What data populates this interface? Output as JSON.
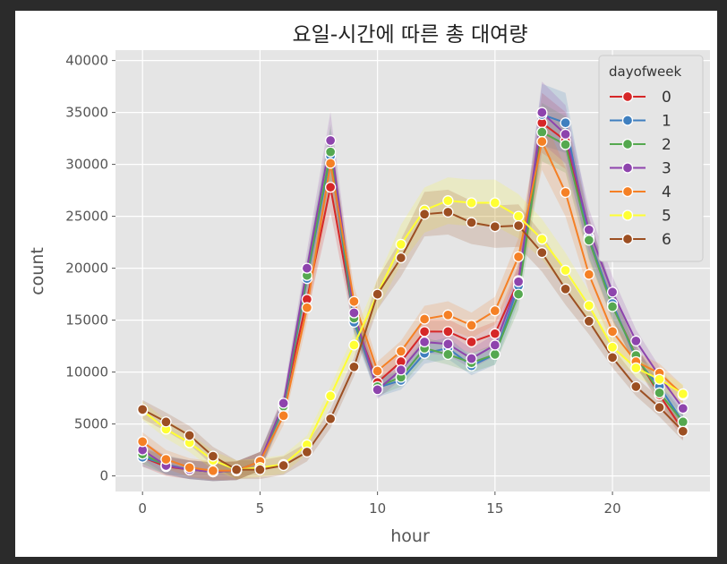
{
  "chart_data": {
    "type": "line",
    "title": "요일-시간에 따른 총 대여량",
    "xlabel": "hour",
    "ylabel": "count",
    "xlim": [
      -1.15,
      24.15
    ],
    "ylim": [
      -1500,
      41000
    ],
    "xticks": [
      0,
      5,
      10,
      15,
      20
    ],
    "yticks": [
      0,
      5000,
      10000,
      15000,
      20000,
      25000,
      30000,
      35000,
      40000
    ],
    "x": [
      0,
      1,
      2,
      3,
      4,
      5,
      6,
      7,
      8,
      9,
      10,
      11,
      12,
      13,
      14,
      15,
      16,
      17,
      18,
      19,
      20,
      21,
      22,
      23
    ],
    "legend_title": "dayofweek",
    "legend_position": "top-right",
    "grid": true,
    "background": "#e5e5e5",
    "marker": "circle",
    "series": [
      {
        "name": "0",
        "color": "#d62728",
        "values": [
          1800,
          900,
          600,
          400,
          500,
          1400,
          6800,
          17000,
          27800,
          15200,
          9000,
          11000,
          13900,
          13900,
          12900,
          13700,
          18800,
          34000,
          32300,
          23000,
          16400,
          11600,
          7800,
          4400
        ]
      },
      {
        "name": "1",
        "color": "#3f7fbf",
        "values": [
          1800,
          1100,
          600,
          400,
          500,
          1400,
          6500,
          19000,
          30800,
          14800,
          8500,
          9200,
          11800,
          12300,
          10600,
          11700,
          18300,
          34800,
          34000,
          22900,
          16600,
          11300,
          8600,
          5200
        ]
      },
      {
        "name": "2",
        "color": "#55a84f",
        "values": [
          2100,
          1000,
          600,
          400,
          500,
          1400,
          6700,
          19300,
          31200,
          15200,
          8600,
          9500,
          12300,
          11700,
          10900,
          11700,
          17500,
          33100,
          31900,
          22700,
          16300,
          11600,
          8000,
          5200
        ]
      },
      {
        "name": "3",
        "color": "#8e44ad",
        "values": [
          2500,
          1000,
          600,
          400,
          500,
          1400,
          7000,
          20000,
          32300,
          15700,
          8300,
          10200,
          12900,
          12700,
          11300,
          12600,
          18700,
          35000,
          32900,
          23700,
          17700,
          13000,
          9600,
          6500
        ]
      },
      {
        "name": "4",
        "color": "#f58025",
        "values": [
          3300,
          1600,
          800,
          500,
          500,
          1400,
          5800,
          16200,
          30100,
          16800,
          10100,
          12000,
          15100,
          15500,
          14500,
          15900,
          21100,
          32200,
          27300,
          19400,
          13900,
          11000,
          9900,
          7800
        ]
      },
      {
        "name": "5",
        "color": "#ffff33",
        "values": [
          6300,
          4500,
          3200,
          1500,
          600,
          800,
          1100,
          3000,
          7700,
          12600,
          17500,
          22300,
          25600,
          26500,
          26300,
          26300,
          25000,
          22800,
          19800,
          16400,
          12400,
          10400,
          9300,
          7900
        ]
      },
      {
        "name": "6",
        "color": "#9c4f22",
        "values": [
          6400,
          5200,
          3900,
          1900,
          600,
          600,
          1000,
          2300,
          5500,
          10500,
          17500,
          21000,
          25200,
          25400,
          24400,
          24000,
          24100,
          21500,
          18000,
          14900,
          11400,
          8600,
          6600,
          4300
        ]
      }
    ]
  }
}
